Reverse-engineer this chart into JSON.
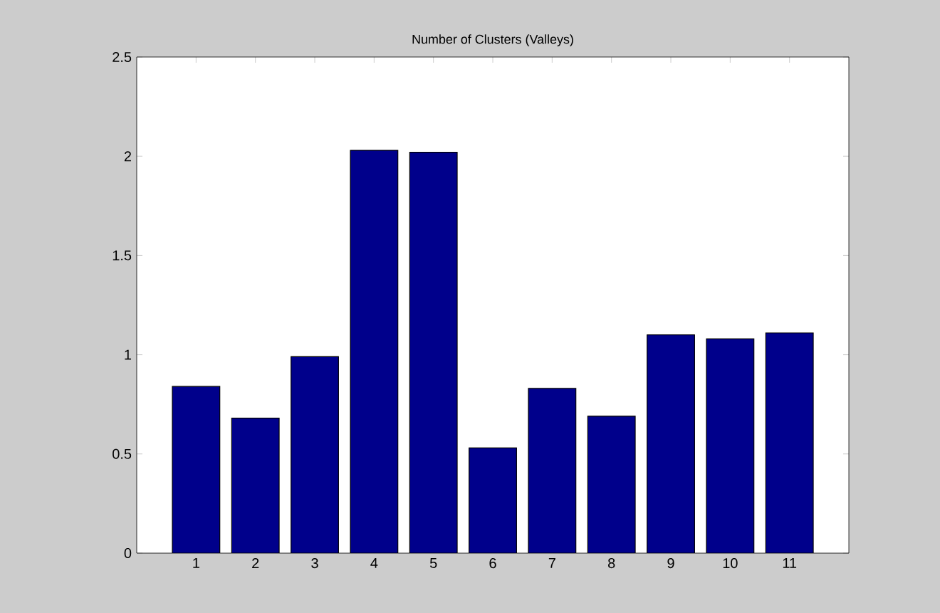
{
  "chart_data": {
    "type": "bar",
    "title": "Number of Clusters (Valleys)",
    "categories": [
      "1",
      "2",
      "3",
      "4",
      "5",
      "6",
      "7",
      "8",
      "9",
      "10",
      "11"
    ],
    "values": [
      0.84,
      0.68,
      0.99,
      2.03,
      2.02,
      0.53,
      0.83,
      0.69,
      1.1,
      1.08,
      1.11
    ],
    "color": "#00008b",
    "ylim": [
      0,
      2.5
    ],
    "yticks": [
      0,
      0.5,
      1,
      1.5,
      2,
      2.5
    ],
    "grid": false
  }
}
